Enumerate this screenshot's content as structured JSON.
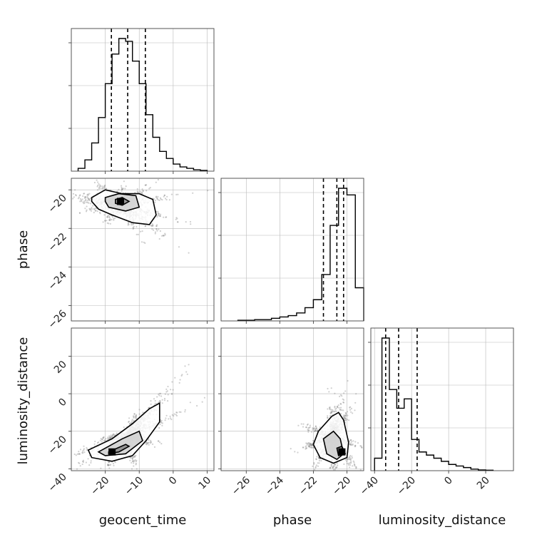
{
  "chart_data": {
    "type": "corner",
    "parameters": [
      "geocent_time",
      "phase",
      "luminosity_distance"
    ],
    "diagonal": [
      {
        "parameter": "geocent_time",
        "xlim": [
          -30,
          12
        ],
        "xticks": [
          -20,
          -10,
          0,
          10
        ],
        "bin_edges": [
          -28,
          -26,
          -24,
          -22,
          -20,
          -18,
          -16,
          -14,
          -12,
          -10,
          -8,
          -6,
          -4,
          -2,
          0,
          2,
          4,
          6,
          8,
          10
        ],
        "counts": [
          0.02,
          0.08,
          0.2,
          0.38,
          0.62,
          0.83,
          0.94,
          0.92,
          0.78,
          0.62,
          0.4,
          0.24,
          0.14,
          0.09,
          0.05,
          0.03,
          0.02,
          0.01,
          0.005
        ],
        "quantiles": [
          -18.2,
          -13.4,
          -8.2
        ]
      },
      {
        "parameter": "phase",
        "xlim": [
          -27.5,
          -19.0
        ],
        "xticks": [
          -26,
          -24,
          -22,
          -20
        ],
        "bin_edges": [
          -26.5,
          -26.0,
          -25.5,
          -25.0,
          -24.5,
          -24.0,
          -23.5,
          -23.0,
          -22.5,
          -22.0,
          -21.5,
          -21.0,
          -20.5,
          -20.0,
          -19.5,
          -19.0
        ],
        "counts": [
          0.005,
          0.005,
          0.01,
          0.01,
          0.02,
          0.03,
          0.04,
          0.06,
          0.1,
          0.16,
          0.35,
          0.72,
          1.0,
          0.95,
          0.25
        ],
        "quantiles": [
          -21.4,
          -20.6,
          -20.2
        ]
      },
      {
        "parameter": "luminosity_distance",
        "xlim": [
          -42,
          35
        ],
        "xticks": [
          -40,
          -20,
          0,
          20
        ],
        "bin_edges": [
          -40,
          -36,
          -32,
          -28,
          -24,
          -20,
          -16,
          -12,
          -8,
          -4,
          0,
          4,
          8,
          12,
          16,
          20,
          24
        ],
        "counts": [
          0.08,
          0.85,
          0.52,
          0.4,
          0.46,
          0.2,
          0.12,
          0.1,
          0.08,
          0.06,
          0.04,
          0.03,
          0.02,
          0.01,
          0.005,
          0.003
        ],
        "quantiles": [
          -34,
          -27,
          -17
        ]
      }
    ],
    "panels_2d": [
      {
        "x": "geocent_time",
        "y": "phase",
        "xlim": [
          -30,
          12
        ],
        "ylim": [
          -26.8,
          -19.4
        ],
        "yticks": [
          -20,
          -22,
          -24,
          -26
        ],
        "density_peak": [
          -15.5,
          -20.6
        ],
        "contours": [
          [
            [
              -24,
              -20.4
            ],
            [
              -20,
              -20.0
            ],
            [
              -15,
              -20.2
            ],
            [
              -10,
              -20.2
            ],
            [
              -6,
              -20.5
            ],
            [
              -5,
              -21.3
            ],
            [
              -7,
              -21.8
            ],
            [
              -12,
              -21.7
            ],
            [
              -18,
              -21.3
            ],
            [
              -22,
              -21.0
            ],
            [
              -24,
              -20.6
            ]
          ],
          [
            [
              -20,
              -20.4
            ],
            [
              -16,
              -20.2
            ],
            [
              -11,
              -20.3
            ],
            [
              -10,
              -20.9
            ],
            [
              -14,
              -21.1
            ],
            [
              -19,
              -20.9
            ],
            [
              -20,
              -20.6
            ]
          ],
          [
            [
              -17,
              -20.5
            ],
            [
              -15,
              -20.4
            ],
            [
              -13,
              -20.6
            ],
            [
              -15,
              -20.8
            ],
            [
              -17,
              -20.7
            ]
          ]
        ]
      },
      {
        "x": "geocent_time",
        "y": "luminosity_distance",
        "xlim": [
          -30,
          12
        ],
        "ylim": [
          -41,
          35
        ],
        "yticks": [
          20,
          0,
          -20,
          -40
        ],
        "density_peak": [
          -18,
          -31
        ],
        "contours": [
          [
            [
              -25,
              -30
            ],
            [
              -18,
              -24
            ],
            [
              -12,
              -16
            ],
            [
              -7,
              -8
            ],
            [
              -4,
              -5
            ],
            [
              -4,
              -15
            ],
            [
              -8,
              -25
            ],
            [
              -12,
              -33
            ],
            [
              -18,
              -36
            ],
            [
              -24,
              -34
            ]
          ],
          [
            [
              -22,
              -31
            ],
            [
              -15,
              -24
            ],
            [
              -10,
              -20
            ],
            [
              -9,
              -25
            ],
            [
              -14,
              -32
            ],
            [
              -20,
              -33
            ]
          ],
          [
            [
              -19,
              -31
            ],
            [
              -14,
              -27
            ],
            [
              -13,
              -28
            ],
            [
              -16,
              -31
            ],
            [
              -19,
              -32
            ]
          ]
        ]
      },
      {
        "x": "phase",
        "y": "luminosity_distance",
        "xlim": [
          -27.5,
          -19.0
        ],
        "ylim": [
          -41,
          35
        ],
        "density_peak": [
          -20.3,
          -31
        ],
        "contours": [
          [
            [
              -21.7,
              -20
            ],
            [
              -20.9,
              -12
            ],
            [
              -20.5,
              -10
            ],
            [
              -20.2,
              -14
            ],
            [
              -19.9,
              -26
            ],
            [
              -20.0,
              -34
            ],
            [
              -20.8,
              -37
            ],
            [
              -21.6,
              -34
            ],
            [
              -22.0,
              -27
            ]
          ],
          [
            [
              -21.4,
              -24
            ],
            [
              -20.8,
              -20
            ],
            [
              -20.4,
              -24
            ],
            [
              -20.2,
              -32
            ],
            [
              -20.6,
              -35
            ],
            [
              -21.2,
              -32
            ]
          ],
          [
            [
              -20.6,
              -29
            ],
            [
              -20.3,
              -28
            ],
            [
              -20.1,
              -32
            ],
            [
              -20.5,
              -33
            ]
          ]
        ]
      }
    ]
  }
}
